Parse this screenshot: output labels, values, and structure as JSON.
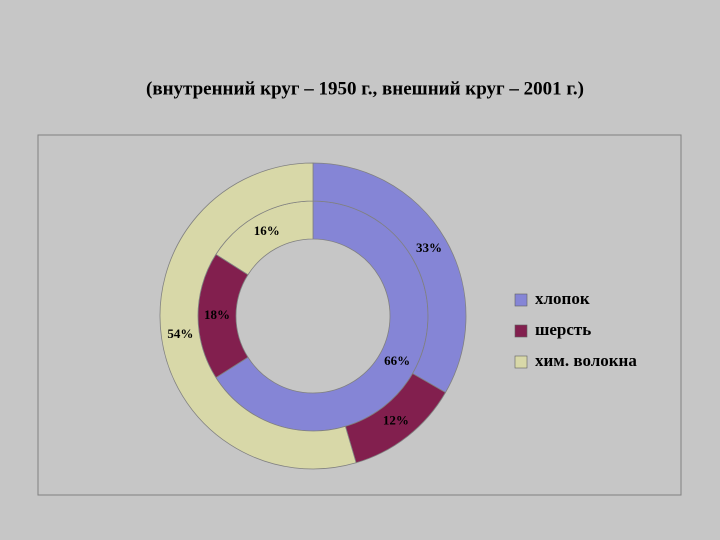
{
  "chart_data": {
    "type": "doughnut",
    "title": "(внутренний круг – 1950 г., внешний круг – 2001 г.)",
    "categories": [
      "хлопок",
      "шерсть",
      "хим. волокна"
    ],
    "colors": [
      "#8585d6",
      "#821f4e",
      "#d8d8a8"
    ],
    "series": [
      {
        "values": [
          66,
          18,
          16
        ],
        "value_labels": [
          "66%",
          "18%",
          "16%"
        ]
      },
      {
        "values": [
          33,
          12,
          54
        ],
        "value_labels": [
          "33%",
          "12%",
          "54%"
        ]
      }
    ],
    "legend": "right"
  }
}
